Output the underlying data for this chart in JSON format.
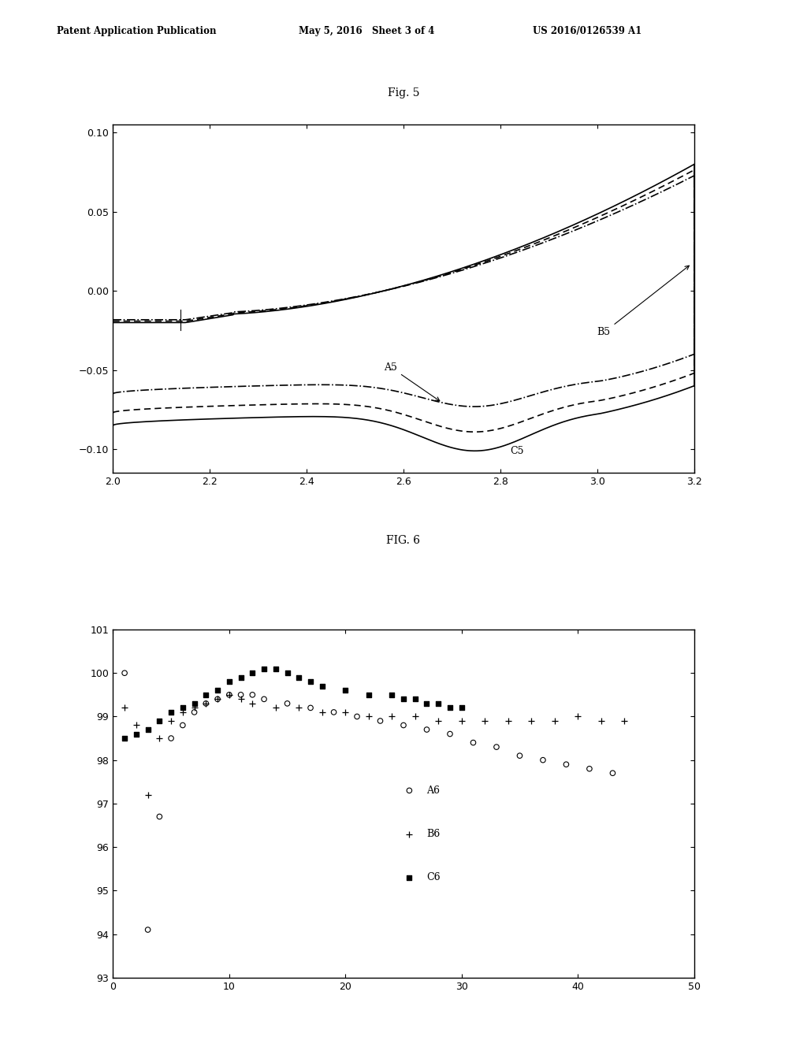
{
  "fig5_title": "Fig. 5",
  "fig6_title": "FIG. 6",
  "header_left": "Patent Application Publication",
  "header_mid": "May 5, 2016   Sheet 3 of 4",
  "header_right": "US 2016/0126539 A1",
  "fig5_xlim": [
    2.0,
    3.2
  ],
  "fig5_ylim": [
    -0.115,
    0.105
  ],
  "fig5_xticks": [
    2.0,
    2.2,
    2.4,
    2.6,
    2.8,
    3.0,
    3.2
  ],
  "fig5_yticks": [
    -0.1,
    -0.05,
    0.0,
    0.05,
    0.1
  ],
  "fig6_xlim": [
    0,
    50
  ],
  "fig6_ylim": [
    93,
    101
  ],
  "fig6_xticks": [
    0,
    10,
    20,
    30,
    40,
    50
  ],
  "fig6_yticks": [
    93,
    94,
    95,
    96,
    97,
    98,
    99,
    100,
    101
  ],
  "background_color": "#ffffff"
}
